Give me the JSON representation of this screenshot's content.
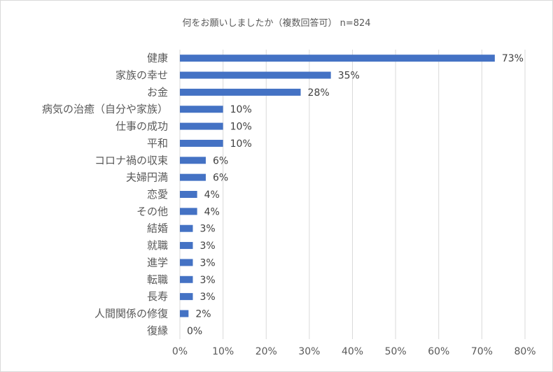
{
  "chart_data": {
    "type": "bar",
    "orientation": "horizontal",
    "title": "何をお願いしましたか（複数回答可） n=824",
    "categories": [
      "健康",
      "家族の幸せ",
      "お金",
      "病気の治癒（自分や家族）",
      "仕事の成功",
      "平和",
      "コロナ禍の収束",
      "夫婦円満",
      "恋愛",
      "その他",
      "結婚",
      "就職",
      "進学",
      "転職",
      "長寿",
      "人間関係の修復",
      "復縁"
    ],
    "values": [
      73,
      35,
      28,
      10,
      10,
      10,
      6,
      6,
      4,
      4,
      3,
      3,
      3,
      3,
      3,
      2,
      0
    ],
    "data_labels": [
      "73%",
      "35%",
      "28%",
      "10%",
      "10%",
      "10%",
      "6%",
      "6%",
      "4%",
      "4%",
      "3%",
      "3%",
      "3%",
      "3%",
      "3%",
      "2%",
      "0%"
    ],
    "xlim": [
      0,
      80
    ],
    "xticks": [
      0,
      10,
      20,
      30,
      40,
      50,
      60,
      70,
      80
    ],
    "xtick_labels": [
      "0%",
      "10%",
      "20%",
      "30%",
      "40%",
      "50%",
      "60%",
      "70%",
      "80%"
    ],
    "xlabel": "",
    "ylabel": "",
    "grid": "vertical",
    "legend": "none",
    "bar_color": "#4472c4",
    "grid_color": "#d9d9d9"
  }
}
